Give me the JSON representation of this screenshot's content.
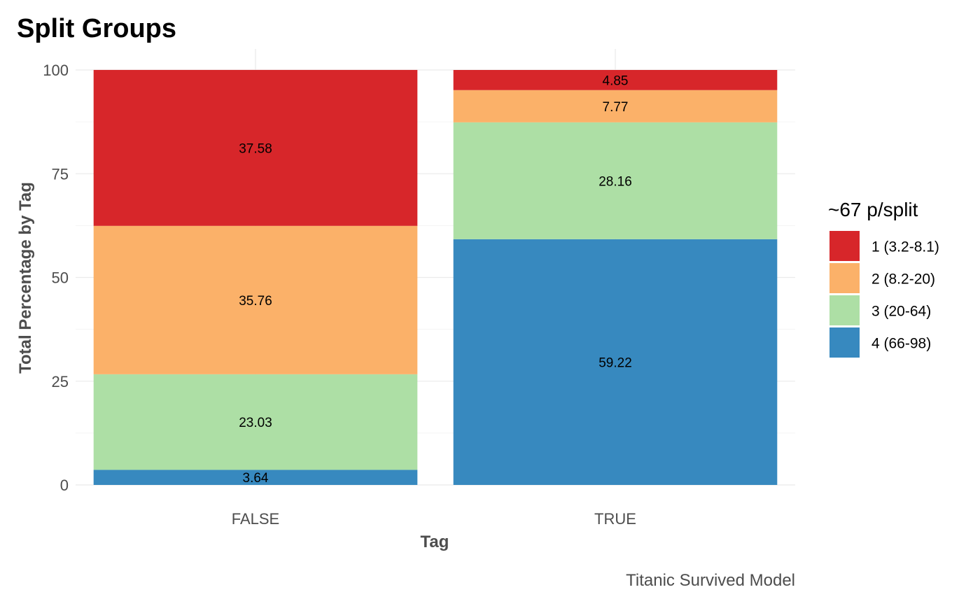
{
  "chart_data": {
    "type": "bar",
    "stacked": true,
    "title": "Split Groups",
    "xlabel": "Tag",
    "ylabel": "Total Percentage by Tag",
    "caption": "Titanic Survived Model",
    "categories": [
      "FALSE",
      "TRUE"
    ],
    "ylim": [
      0,
      100
    ],
    "yticks": [
      0,
      25,
      50,
      75,
      100
    ],
    "grid": true,
    "legend": {
      "title": "~67 p/split",
      "position": "right"
    },
    "series": [
      {
        "name": "1 (3.2-8.1)",
        "color": "#d7262a",
        "values": [
          37.58,
          4.85
        ]
      },
      {
        "name": "2 (8.2-20)",
        "color": "#fbb169",
        "values": [
          35.76,
          7.77
        ]
      },
      {
        "name": "3 (20-64)",
        "color": "#addfa5",
        "values": [
          23.03,
          28.16
        ]
      },
      {
        "name": "4 (66-98)",
        "color": "#3789bf",
        "values": [
          3.64,
          59.22
        ]
      }
    ],
    "stack_order_bottom_to_top": [
      "4 (66-98)",
      "3 (20-64)",
      "2 (8.2-20)",
      "1 (3.2-8.1)"
    ]
  }
}
